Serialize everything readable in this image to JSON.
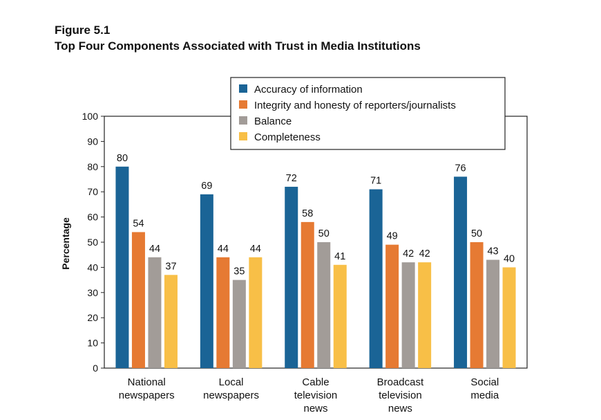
{
  "figure": {
    "label": "Figure 5.1",
    "title": "Top Four Components Associated with Trust in Media Institutions"
  },
  "chart_data": {
    "type": "bar",
    "title": "Top Four Components Associated with Trust in Media Institutions",
    "xlabel": "",
    "ylabel": "Percentage",
    "ylim": [
      0,
      100
    ],
    "yticks": [
      0,
      10,
      20,
      30,
      40,
      50,
      60,
      70,
      80,
      90,
      100
    ],
    "grid": false,
    "legend_position": "top-right",
    "categories": [
      [
        "National",
        "newspapers"
      ],
      [
        "Local",
        "newspapers"
      ],
      [
        "Cable",
        "television",
        "news"
      ],
      [
        "Broadcast",
        "television",
        "news"
      ],
      [
        "Social",
        "media"
      ]
    ],
    "series": [
      {
        "name": "Accuracy of information",
        "color": "#1a6496",
        "values": [
          80,
          69,
          72,
          71,
          76
        ]
      },
      {
        "name": "Integrity and honesty of reporters/journalists",
        "color": "#e67a33",
        "values": [
          54,
          44,
          58,
          49,
          50
        ]
      },
      {
        "name": "Balance",
        "color": "#a29c98",
        "values": [
          44,
          35,
          50,
          42,
          43
        ]
      },
      {
        "name": "Completeness",
        "color": "#f8bf47",
        "values": [
          37,
          44,
          41,
          42,
          40
        ]
      }
    ]
  }
}
